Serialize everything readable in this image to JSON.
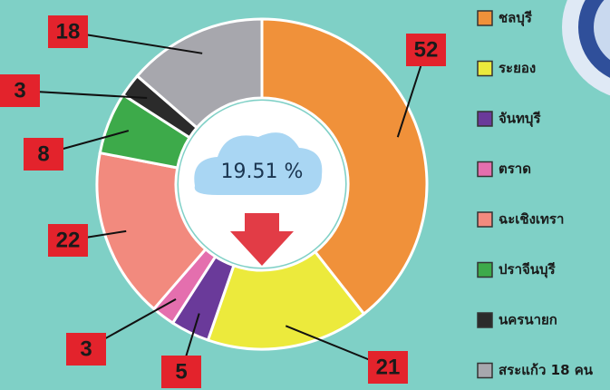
{
  "chart_data": {
    "type": "donut",
    "center_label": "19.51 %",
    "categories": [
      "ชลบุรี",
      "ระยอง",
      "จันทบุรี",
      "ตราด",
      "ฉะเชิงเทรา",
      "ปราจีนบุรี",
      "นครนายก",
      "สระแก้ว 18 คน"
    ],
    "values": [
      52,
      21,
      5,
      3,
      22,
      8,
      3,
      18
    ],
    "colors": [
      "#f0913a",
      "#ecea3c",
      "#6a3a9a",
      "#e46fae",
      "#f28a7e",
      "#3daa4a",
      "#2b2b2b",
      "#a7a7ad"
    ]
  }
}
